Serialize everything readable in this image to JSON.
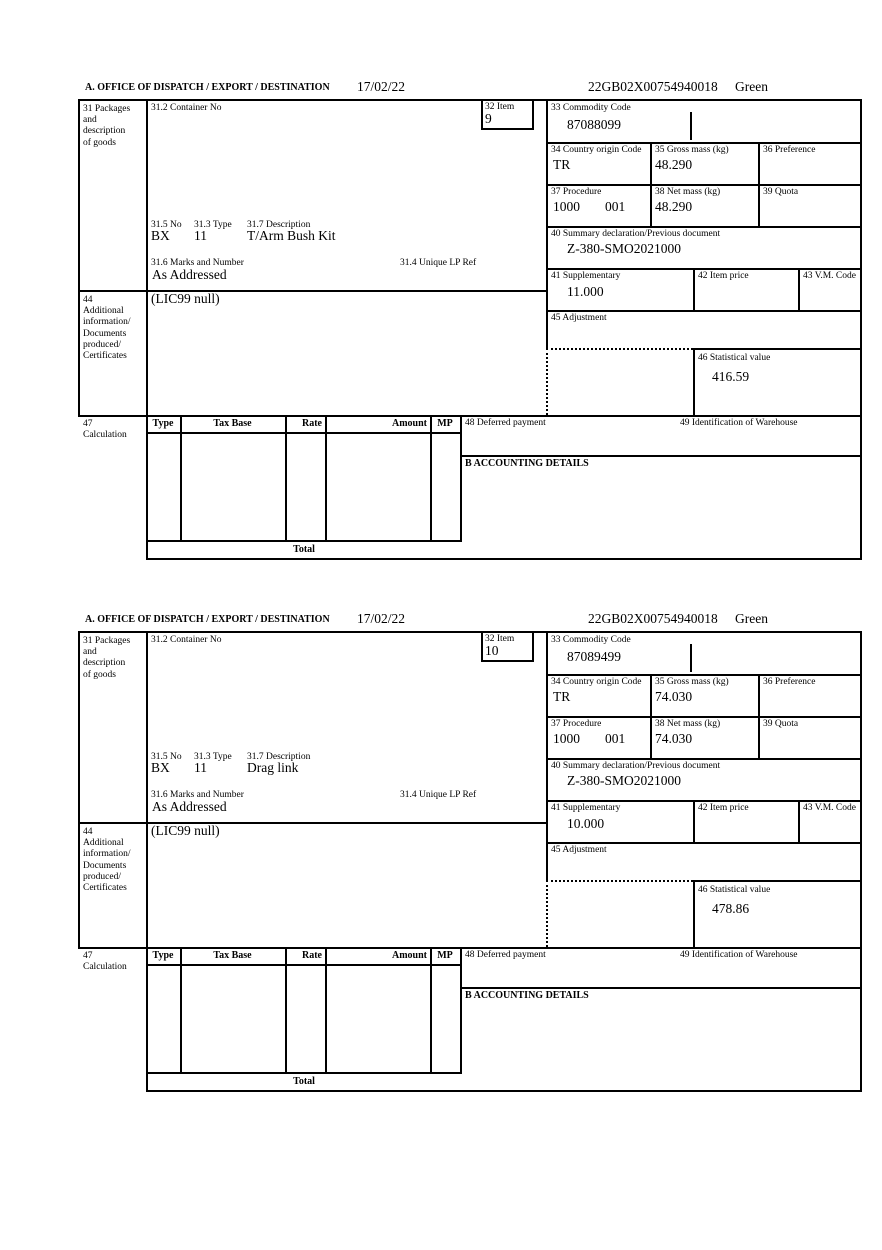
{
  "form": {
    "header": {
      "title": "A.  OFFICE OF DISPATCH / EXPORT / DESTINATION",
      "date": "17/02/22",
      "reference": "22GB02X00754940018",
      "routing": "Green"
    },
    "labels": {
      "box31": "31 Packages\nand\ndescription\nof goods",
      "box31_2": "31.2 Container No",
      "box32": "32 Item",
      "box33": "33 Commodity Code",
      "box34": "34 Country origin Code",
      "box35": "35 Gross mass (kg)",
      "box36": "36 Preference",
      "box37": "37 Procedure",
      "box38": "38 Net mass (kg)",
      "box39": "39 Quota",
      "box31_5": "31.5 No",
      "box31_3": "31.3 Type",
      "box31_7": "31.7 Description",
      "box31_6": "31.6 Marks and Number",
      "box31_4": "31.4 Unique LP Ref",
      "box40": "40 Summary declaration/Previous document",
      "box41": "41 Supplementary",
      "box42": "42 Item price",
      "box43": "43 V.M. Code",
      "box44": "44\nAdditional\ninformation/\nDocuments\nproduced/\nCertificates",
      "box45": "45 Adjustment",
      "box46": "46 Statistical value",
      "box47": "47\nCalculation",
      "box48": "48 Deferred payment",
      "box49": "49 Identification of Warehouse",
      "accounting": "B ACCOUNTING DETAILS",
      "total": "Total",
      "calc_columns": [
        "Type",
        "Tax Base",
        "Rate",
        "Amount",
        "MP"
      ]
    },
    "items": [
      {
        "item_no": "9",
        "commodity_code": "87088099",
        "country_origin": "TR",
        "gross_mass": "48.290",
        "procedure": "1000",
        "procedure_2": "001",
        "net_mass": "48.290",
        "package_no": "BX",
        "package_type": "11",
        "description": "T/Arm Bush Kit",
        "marks": "As Addressed",
        "previous_document": "Z-380-SMO2021000",
        "supplementary": "11.000",
        "additional_info": "(LIC99 null)",
        "statistical_value": "416.59"
      },
      {
        "item_no": "10",
        "commodity_code": "87089499",
        "country_origin": "TR",
        "gross_mass": "74.030",
        "procedure": "1000",
        "procedure_2": "001",
        "net_mass": "74.030",
        "package_no": "BX",
        "package_type": "11",
        "description": "Drag link",
        "marks": "As Addressed",
        "previous_document": "Z-380-SMO2021000",
        "supplementary": "10.000",
        "additional_info": "(LIC99 null)",
        "statistical_value": "478.86"
      }
    ]
  }
}
